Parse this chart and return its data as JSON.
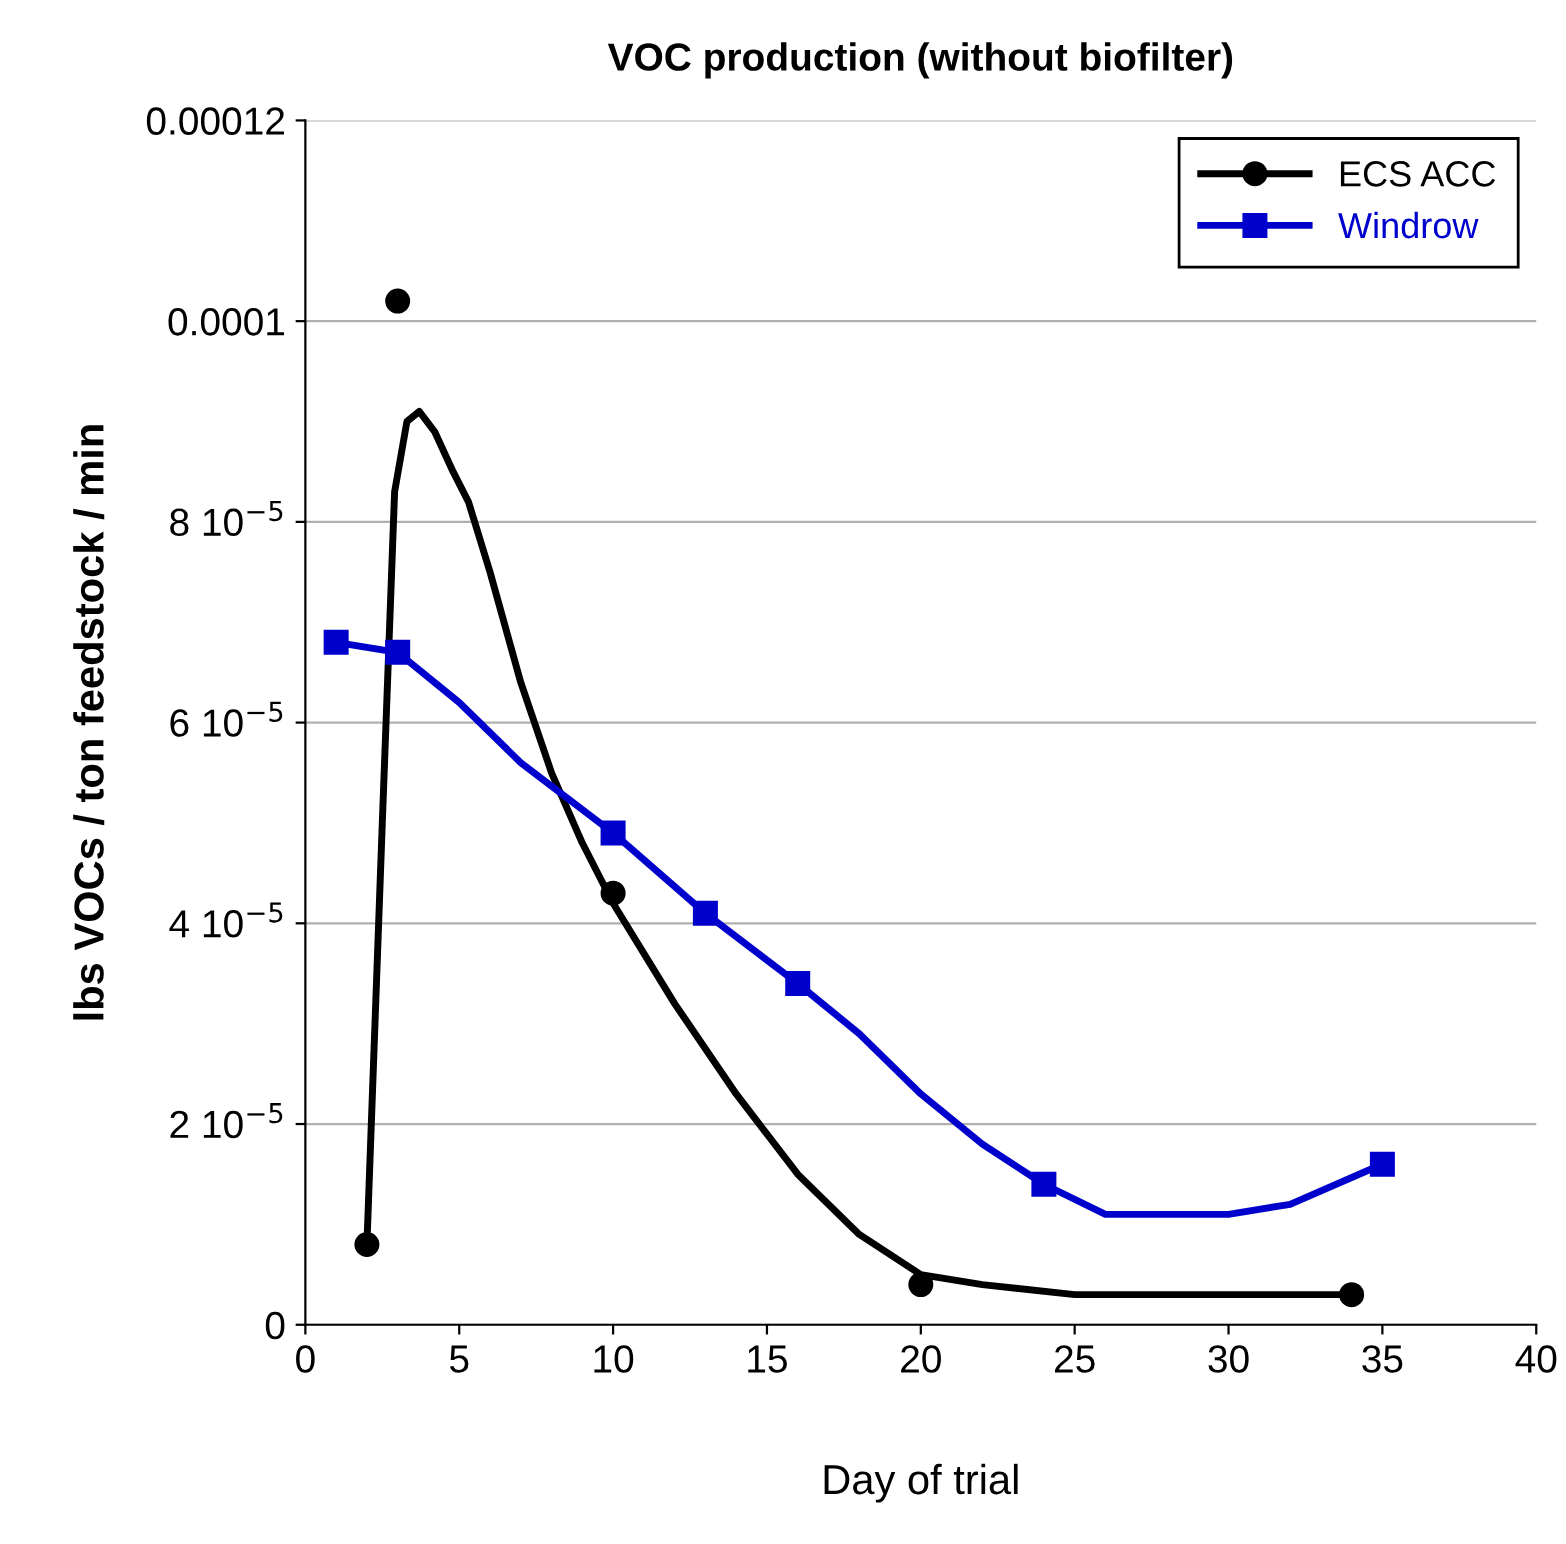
{
  "chart_data": {
    "type": "line",
    "title": "VOC production (without biofilter)",
    "xlabel": "Day of trial",
    "ylabel": "lbs VOCs / ton feedstock / min",
    "xlim": [
      0,
      40
    ],
    "xticks": [
      0,
      5,
      10,
      15,
      20,
      25,
      30,
      35,
      40
    ],
    "ylim": [
      0,
      0.00012
    ],
    "yticks": [
      0,
      {
        "value": 2e-05,
        "label": "2 10$^{−5}$"
      },
      {
        "value": 4e-05,
        "label": "4 10$^{−5}$"
      },
      {
        "value": 6e-05,
        "label": "6 10$^{−5}$"
      },
      {
        "value": 8e-05,
        "label": "8 10$^{−5}$"
      },
      {
        "value": 0.0001,
        "label": "0.0001"
      },
      {
        "value": 0.00012,
        "label": "0.00012"
      }
    ],
    "grid": "y",
    "legend": "top right",
    "series": [
      {
        "name": "ECS ACC",
        "type": "scatter",
        "marker": "circle",
        "color": "#000000",
        "x": [
          2,
          3,
          10,
          20,
          34
        ],
        "values": [
          8e-06,
          0.000102,
          4.3e-05,
          4e-06,
          3e-06
        ]
      },
      {
        "color": "#000000",
        "x": [
          2,
          2.5,
          2.9,
          3.3,
          3.7,
          4.2,
          4.8,
          5.3,
          6,
          7,
          8,
          9,
          10,
          12,
          14,
          16,
          18,
          20,
          22,
          25,
          30,
          34
        ],
        "values": [
          8e-06,
          5e-05,
          8.3e-05,
          9e-05,
          9.1e-05,
          8.9e-05,
          8.5e-05,
          8.2e-05,
          7.5e-05,
          6.4e-05,
          5.5e-05,
          4.8e-05,
          4.2e-05,
          3.2e-05,
          2.3e-05,
          1.5e-05,
          9e-06,
          5e-06,
          4e-06,
          3e-06,
          3e-06,
          3e-06
        ]
      },
      {
        "name": "Windrow",
        "type": "scatter",
        "marker": "square",
        "color": "#0000cc",
        "x": [
          1,
          3,
          10,
          13,
          16,
          24,
          35
        ],
        "values": [
          6.8e-05,
          6.7e-05,
          4.9e-05,
          4.1e-05,
          3.4e-05,
          1.4e-05,
          1.6e-05
        ]
      },
      {
        "color": "#0000cc",
        "x": [
          1,
          3,
          5,
          7,
          10,
          13,
          16,
          18,
          20,
          22,
          24,
          26,
          28,
          30,
          32,
          35
        ],
        "values": [
          6.8e-05,
          6.7e-05,
          6.2e-05,
          5.6e-05,
          4.9e-05,
          4.1e-05,
          3.4e-05,
          2.9e-05,
          2.3e-05,
          1.8e-05,
          1.4e-05,
          1.1e-05,
          1.1e-05,
          1.1e-05,
          1.2e-05,
          1.6e-05
        ]
      }
    ]
  }
}
